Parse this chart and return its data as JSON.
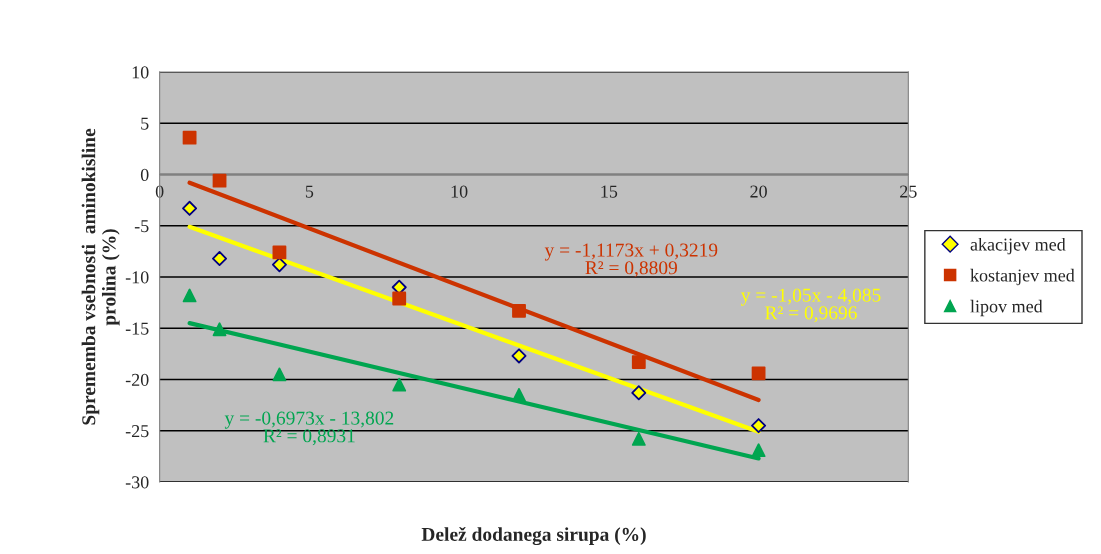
{
  "chart_data": {
    "type": "scatter",
    "xlabel": "Delež dodanega sirupa (%)",
    "ylabel": "Sprememba vsebnosti  aminokisline\nprolina (%)",
    "xlim": [
      0,
      25
    ],
    "xticks": [
      0,
      5,
      10,
      15,
      20,
      25
    ],
    "ylim": [
      -30,
      10
    ],
    "yticks": [
      -30,
      -25,
      -20,
      -15,
      -10,
      -5,
      0,
      5,
      10
    ],
    "grid": "y",
    "legend": "right",
    "series": [
      {
        "name": "akacijev med",
        "marker": "diamond",
        "color": "#ffff00",
        "x": [
          1,
          2,
          4,
          8,
          12,
          16,
          20
        ],
        "values": [
          -3.3,
          -8.2,
          -8.8,
          -11.0,
          -17.7,
          -21.3,
          -24.5
        ]
      },
      {
        "name": "kostanjev med",
        "marker": "square",
        "color": "#cc3300",
        "x": [
          1,
          2,
          4,
          8,
          12,
          16,
          20
        ],
        "values": [
          3.6,
          -0.6,
          -7.6,
          -12.1,
          -13.3,
          -18.3,
          -19.4
        ]
      },
      {
        "name": "lipov med",
        "marker": "triangle",
        "color": "#00a550",
        "x": [
          1,
          2,
          4,
          8,
          12,
          16,
          20
        ],
        "values": [
          -11.8,
          -15.1,
          -19.5,
          -20.5,
          -21.5,
          -25.8,
          -26.9
        ]
      },
      {
        "type": "line",
        "color": "#cc3300",
        "x": [
          1,
          20
        ],
        "values": [
          -0.8,
          -22.0
        ]
      },
      {
        "type": "line",
        "color": "#ffff00",
        "x": [
          1,
          20
        ],
        "values": [
          -5.1,
          -25.1
        ]
      },
      {
        "type": "line",
        "color": "#00a550",
        "x": [
          1,
          20
        ],
        "values": [
          -14.5,
          -27.7
        ]
      }
    ],
    "annotations": [
      "y = -1,1173x + 0,3219\nR² = 0,8809",
      "y = -1,05x - 4,085\nR² = 0,9696",
      "y = -0,6973x - 13,802\nR² = 0,8931"
    ]
  }
}
